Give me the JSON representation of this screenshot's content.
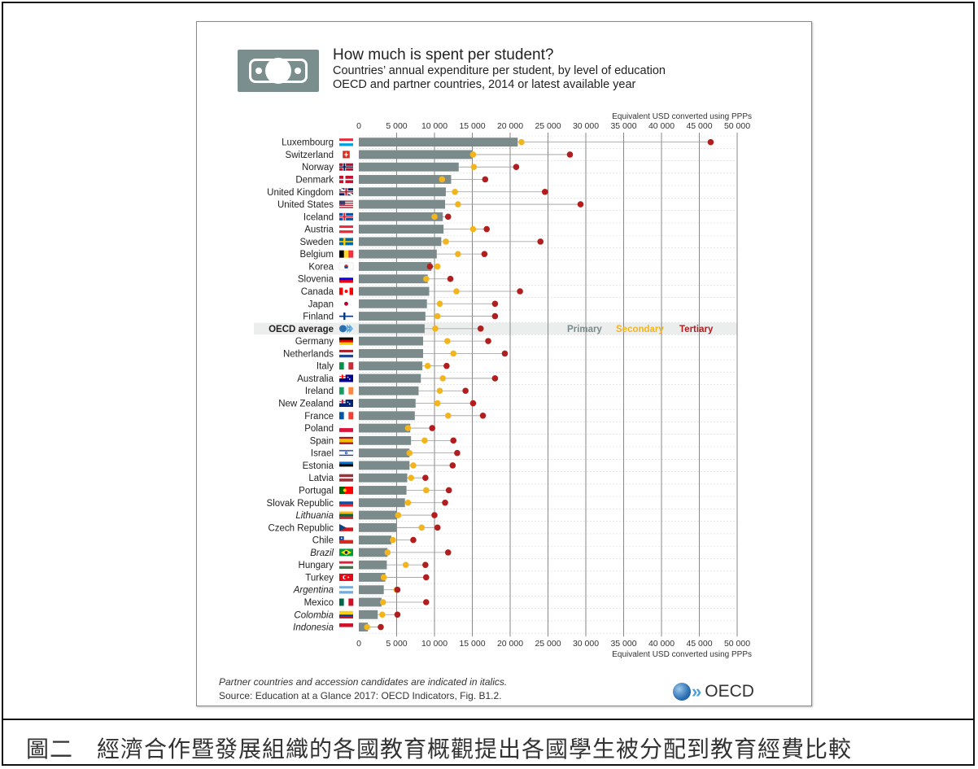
{
  "caption": "圖二　經濟合作暨發展組織的各國教育概觀提出各國學生被分配到教育經費比較",
  "header": {
    "icon": "banknote-icon",
    "title": "How much is spent per student?",
    "subtitle_1": "Countries’ annual expenditure per student, by level of education",
    "subtitle_2": "OECD and partner countries, 2014 or latest available year"
  },
  "footer": {
    "note": "Partner countries and accession candidates are indicated in italics.",
    "source": "Source: Education at a Glance 2017: OECD Indicators, Fig. B1.2.",
    "logo_text": "OECD"
  },
  "colors": {
    "primary": "#7b8b8b",
    "secondary": "#f2b51e",
    "tertiary": "#b21d1d",
    "gridline": "#888888"
  },
  "chart_data": {
    "type": "bar",
    "title": "How much is spent per student?",
    "xlabel": "Equivalent USD converted using PPPs",
    "xlim": [
      0,
      50000
    ],
    "xticks": [
      0,
      5000,
      10000,
      15000,
      20000,
      25000,
      30000,
      35000,
      40000,
      45000,
      50000
    ],
    "xtick_labels": [
      "0",
      "5 000",
      "10 000",
      "15 000",
      "20 000",
      "25 000",
      "30 000",
      "35 000",
      "40 000",
      "45 000",
      "50 000"
    ],
    "legend": [
      "Primary",
      "Secondary",
      "Tertiary"
    ],
    "legend_position": "inline in OECD average row, right",
    "grid": true,
    "categories": [
      "Luxembourg",
      "Switzerland",
      "Norway",
      "Denmark",
      "United Kingdom",
      "United States",
      "Iceland",
      "Austria",
      "Sweden",
      "Belgium",
      "Korea",
      "Slovenia",
      "Canada",
      "Japan",
      "Finland",
      "OECD average",
      "Germany",
      "Netherlands",
      "Italy",
      "Australia",
      "Ireland",
      "New Zealand",
      "France",
      "Poland",
      "Spain",
      "Israel",
      "Estonia",
      "Latvia",
      "Portugal",
      "Slovak Republic",
      "Lithuania",
      "Czech Republic",
      "Chile",
      "Brazil",
      "Hungary",
      "Turkey",
      "Argentina",
      "Mexico",
      "Colombia",
      "Indonesia"
    ],
    "italic_categories": [
      "Lithuania",
      "Brazil",
      "Argentina",
      "Colombia",
      "Indonesia"
    ],
    "highlight_category": "OECD average",
    "flags": {
      "Luxembourg": {
        "type": "h3",
        "c": [
          "#ed2939",
          "#ffffff",
          "#00a1de"
        ]
      },
      "Switzerland": {
        "type": "cross",
        "c": [
          "#d52b1e",
          "#ffffff"
        ]
      },
      "Norway": {
        "type": "nordic2",
        "c": [
          "#ba0c2f",
          "#ffffff",
          "#00205b"
        ]
      },
      "Denmark": {
        "type": "nordic",
        "c": [
          "#c8102e",
          "#ffffff"
        ]
      },
      "United Kingdom": {
        "type": "uk",
        "c": [
          "#012169",
          "#ffffff",
          "#c8102e"
        ]
      },
      "United States": {
        "type": "us",
        "c": [
          "#b22234",
          "#ffffff",
          "#3c3b6e"
        ]
      },
      "Iceland": {
        "type": "nordic2",
        "c": [
          "#02529c",
          "#ffffff",
          "#dc1e35"
        ]
      },
      "Austria": {
        "type": "h3",
        "c": [
          "#ed2939",
          "#ffffff",
          "#ed2939"
        ]
      },
      "Sweden": {
        "type": "nordic",
        "c": [
          "#006aa7",
          "#fecc00"
        ]
      },
      "Belgium": {
        "type": "v3",
        "c": [
          "#000000",
          "#fdda24",
          "#ef3340"
        ]
      },
      "Korea": {
        "type": "korea",
        "c": [
          "#ffffff",
          "#cd2e3a",
          "#0047a0"
        ]
      },
      "Slovenia": {
        "type": "h3",
        "c": [
          "#ffffff",
          "#0000ff",
          "#ff0000"
        ]
      },
      "Canada": {
        "type": "canada",
        "c": [
          "#ff0000",
          "#ffffff"
        ]
      },
      "Japan": {
        "type": "japan",
        "c": [
          "#ffffff",
          "#bc002d"
        ]
      },
      "Finland": {
        "type": "nordic",
        "c": [
          "#ffffff",
          "#003580"
        ]
      },
      "OECD average": {
        "type": "oecd",
        "c": [
          "#2b6fb3",
          "#4a9fd8"
        ]
      },
      "Germany": {
        "type": "h3",
        "c": [
          "#000000",
          "#dd0000",
          "#ffce00"
        ]
      },
      "Netherlands": {
        "type": "h3",
        "c": [
          "#ae1c28",
          "#ffffff",
          "#21468b"
        ]
      },
      "Italy": {
        "type": "v3",
        "c": [
          "#009246",
          "#ffffff",
          "#ce2b37"
        ]
      },
      "Australia": {
        "type": "ausnz",
        "c": [
          "#00008b",
          "#ffffff",
          "#ff0000"
        ]
      },
      "Ireland": {
        "type": "v3",
        "c": [
          "#169b62",
          "#ffffff",
          "#ff883e"
        ]
      },
      "New Zealand": {
        "type": "ausnz",
        "c": [
          "#00247d",
          "#ffffff",
          "#cc142b"
        ]
      },
      "France": {
        "type": "v3",
        "c": [
          "#0055a4",
          "#ffffff",
          "#ef4135"
        ]
      },
      "Poland": {
        "type": "h2",
        "c": [
          "#ffffff",
          "#dc143c"
        ]
      },
      "Spain": {
        "type": "spain",
        "c": [
          "#aa151b",
          "#f1bf00"
        ]
      },
      "Israel": {
        "type": "israel",
        "c": [
          "#ffffff",
          "#0038b8"
        ]
      },
      "Estonia": {
        "type": "h3",
        "c": [
          "#0072ce",
          "#000000",
          "#ffffff"
        ]
      },
      "Latvia": {
        "type": "latvia",
        "c": [
          "#9e3039",
          "#ffffff"
        ]
      },
      "Portugal": {
        "type": "portugal",
        "c": [
          "#006600",
          "#ff0000",
          "#ffcc00"
        ]
      },
      "Slovak Republic": {
        "type": "h3",
        "c": [
          "#ffffff",
          "#0b4ea2",
          "#ee1c25"
        ]
      },
      "Lithuania": {
        "type": "h3",
        "c": [
          "#fdb913",
          "#006a44",
          "#c1272d"
        ]
      },
      "Czech Republic": {
        "type": "czech",
        "c": [
          "#ffffff",
          "#d7141a",
          "#11457e"
        ]
      },
      "Chile": {
        "type": "chile",
        "c": [
          "#ffffff",
          "#d52b1e",
          "#0039a6"
        ]
      },
      "Brazil": {
        "type": "brazil",
        "c": [
          "#009c3b",
          "#ffdf00",
          "#002776"
        ]
      },
      "Hungary": {
        "type": "h3",
        "c": [
          "#cd2a3e",
          "#ffffff",
          "#436f4d"
        ]
      },
      "Turkey": {
        "type": "turkey",
        "c": [
          "#e30a17",
          "#ffffff"
        ]
      },
      "Argentina": {
        "type": "h3",
        "c": [
          "#74acdf",
          "#ffffff",
          "#74acdf"
        ]
      },
      "Mexico": {
        "type": "v3",
        "c": [
          "#006847",
          "#ffffff",
          "#ce1126"
        ]
      },
      "Colombia": {
        "type": "colombia",
        "c": [
          "#fcd116",
          "#003893",
          "#ce1126"
        ]
      },
      "Indonesia": {
        "type": "h2",
        "c": [
          "#ce1126",
          "#ffffff"
        ]
      }
    },
    "series": [
      {
        "name": "Primary",
        "values": [
          21000,
          15000,
          13200,
          12200,
          11500,
          11400,
          11100,
          11200,
          10900,
          10300,
          9600,
          9100,
          9300,
          9000,
          8800,
          8700,
          8500,
          8500,
          8400,
          8200,
          7900,
          7500,
          7400,
          6800,
          6900,
          6700,
          6700,
          6400,
          6300,
          6100,
          5000,
          5000,
          4300,
          3800,
          3700,
          3500,
          3300,
          3000,
          2500,
          1200
        ]
      },
      {
        "name": "Secondary",
        "values": [
          21500,
          15100,
          15200,
          11000,
          12700,
          13100,
          10000,
          15100,
          11500,
          13100,
          10400,
          8900,
          12900,
          10700,
          10400,
          10100,
          11700,
          12500,
          9100,
          11100,
          10700,
          10400,
          11800,
          6500,
          8700,
          6700,
          7200,
          6900,
          8900,
          6500,
          5200,
          8300,
          4500,
          3800,
          6200,
          3300,
          5000,
          3200,
          3100,
          1100
        ]
      },
      {
        "name": "Tertiary",
        "values": [
          46500,
          27900,
          20800,
          16700,
          24600,
          29300,
          11800,
          16900,
          24000,
          16600,
          9400,
          12100,
          21300,
          18000,
          18000,
          16100,
          17100,
          19300,
          11600,
          18000,
          14100,
          15100,
          16400,
          9700,
          12500,
          13000,
          12400,
          8800,
          11900,
          11400,
          10000,
          10400,
          7200,
          11800,
          8800,
          8900,
          5100,
          8900,
          5100,
          2900
        ]
      }
    ]
  }
}
